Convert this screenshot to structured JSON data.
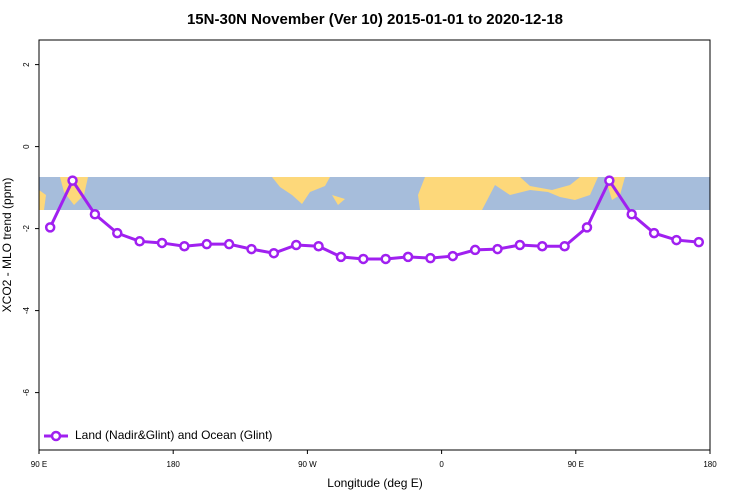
{
  "chart_data": {
    "type": "line",
    "title": "15N-30N November (Ver 10)   2015-01-01 to 2020-12-18",
    "x_label": "Longitude (deg E)",
    "y_label": "XCO2 - MLO trend (ppm)",
    "xlim": [
      90,
      540
    ],
    "xticks": [
      {
        "value": 90,
        "label": "90 E"
      },
      180,
      {
        "value": 270,
        "label": "90 W"
      },
      {
        "value": 360,
        "label": "0"
      },
      {
        "value": 450,
        "label": "90 E"
      },
      {
        "value": 540,
        "label": "180"
      }
    ],
    "ylim": [
      -7.4,
      2.6
    ],
    "yticks": [
      2,
      0,
      -2,
      -4,
      -6
    ],
    "legend_position": "bottom-left",
    "series": [
      {
        "name": "Land (Nadir&Glint) and Ocean (Glint)",
        "color": "#a020f0",
        "x": [
          97.5,
          112.5,
          127.5,
          142.5,
          157.5,
          172.5,
          187.5,
          202.5,
          217.5,
          232.5,
          247.5,
          262.5,
          277.5,
          292.5,
          307.5,
          322.5,
          337.5,
          352.5,
          367.5,
          382.5,
          397.5,
          412.5,
          427.5,
          442.5,
          457.5,
          472.5,
          487.5,
          502.5,
          517.5,
          532.5
        ],
        "values": [
          -1.97,
          -0.83,
          -1.65,
          -2.11,
          -2.31,
          -2.35,
          -2.43,
          -2.38,
          -2.38,
          -2.5,
          -2.6,
          -2.4,
          -2.43,
          -2.69,
          -2.74,
          -2.74,
          -2.69,
          -2.72,
          -2.67,
          -2.52,
          -2.5,
          -2.4,
          -2.43,
          -2.43,
          -1.97,
          -0.83,
          -1.65,
          -2.11,
          -2.28,
          -2.33
        ]
      }
    ]
  }
}
